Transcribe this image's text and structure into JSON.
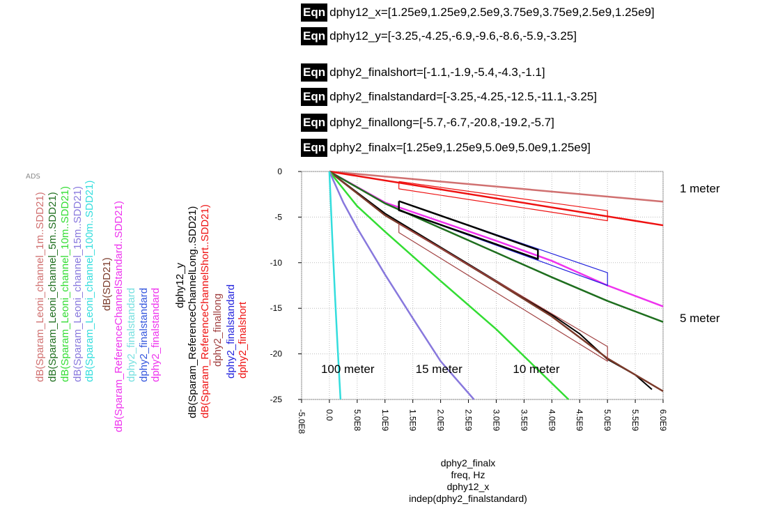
{
  "equations": [
    {
      "tag": "Eqn",
      "text": "dphy12_x=[1.25e9,1.25e9,2.5e9,3.75e9,3.75e9,2.5e9,1.25e9]"
    },
    {
      "tag": "Eqn",
      "text": "dphy12_y=[-3.25,-4.25,-6.9,-9.6,-8.6,-5.9,-3.25]"
    },
    {
      "tag": "Eqn",
      "text": "dphy2_finalshort=[-1.1,-1.9,-5.4,-4.3,-1.1]"
    },
    {
      "tag": "Eqn",
      "text": "dphy2_finalstandard=[-3.25,-4.25,-12.5,-11.1,-3.25]"
    },
    {
      "tag": "Eqn",
      "text": "dphy2_finallong=[-5.7,-6.7,-20.8,-19.2,-5.7]"
    },
    {
      "tag": "Eqn",
      "text": "dphy2_finalx=[1.25e9,1.25e9,5.0e9,5.0e9,1.25e9]"
    }
  ],
  "ads_label": "ADS",
  "xlabels": [
    "dphy2_finalx",
    "freq, Hz",
    "dphy12_x",
    "indep(dphy2_finalstandard)"
  ],
  "colors": {
    "leoni_1m": "#d07070",
    "leoni_5m": "#1e6e1e",
    "leoni_10m": "#33dd33",
    "leoni_15m": "#8878dd",
    "leoni_100m": "#33dddd",
    "sdd21": "#7a3a2a",
    "standard_channel": "#ee33ee",
    "finalstandard_cyan": "#77e0e0",
    "finalstandard_blue": "#3355dd",
    "finalstandard_magenta": "#ee33ee",
    "dphy12": "#000000",
    "long_channel": "#000000",
    "short_channel": "#ee1111",
    "finallong": "#a04040",
    "finalstandard_dark": "#2222dd",
    "finalshort": "#ee1111"
  },
  "chart_data": {
    "type": "line",
    "xlim": [
      -500000000.0,
      6000000000.0
    ],
    "ylim": [
      -25,
      0
    ],
    "xticks": [
      "-5.0E8",
      "0.0",
      "5.0E8",
      "1.0E9",
      "1.5E9",
      "2.0E9",
      "2.5E9",
      "3.0E9",
      "3.5E9",
      "4.0E9",
      "4.5E9",
      "5.0E9",
      "5.5E9",
      "6.0E9"
    ],
    "yticks": [
      "0",
      "-5",
      "-10",
      "-15",
      "-20",
      "-25"
    ],
    "legend": [
      {
        "label": "dB(Sparam_Leoni_channel_1m..SDD21)",
        "color_key": "leoni_1m"
      },
      {
        "label": "dB(Sparam_Leoni_channel_5m..SDD21)",
        "color_key": "leoni_5m"
      },
      {
        "label": "dB(Sparam_Leoni_channel_10m..SDD21)",
        "color_key": "leoni_10m"
      },
      {
        "label": "dB(Sparam_Leoni_channel_15m..SDD21)",
        "color_key": "leoni_15m"
      },
      {
        "label": "dB(Sparam_Leoni_channel_100m..SDD21)",
        "color_key": "leoni_100m"
      },
      {
        "label": "dB(SDD21)",
        "color_key": "sdd21"
      },
      {
        "label": "dB(Sparam_ReferenceChannelStandard..SDD21)",
        "color_key": "standard_channel"
      },
      {
        "label": "dphy2_finalstandard",
        "color_key": "finalstandard_cyan"
      },
      {
        "label": "dphy2_finalstandard",
        "color_key": "finalstandard_blue"
      },
      {
        "label": "dphy2_finalstandard",
        "color_key": "finalstandard_magenta"
      },
      {
        "label": "dphy12_y",
        "color_key": "dphy12"
      },
      {
        "label": "dB(Sparam_ReferenceChannelLong..SDD21)",
        "color_key": "long_channel"
      },
      {
        "label": "dB(Sparam_ReferenceChannelShort..SDD21)",
        "color_key": "short_channel"
      },
      {
        "label": "dphy2_finallong",
        "color_key": "finallong"
      },
      {
        "label": "dphy2_finalstandard",
        "color_key": "finalstandard_dark"
      },
      {
        "label": "dphy2_finalshort",
        "color_key": "finalshort"
      }
    ],
    "annotations": [
      {
        "text": "1 meter",
        "x": 6300000000.0,
        "y": -2.3
      },
      {
        "text": "5 meter",
        "x": 6300000000.0,
        "y": -16.5
      },
      {
        "text": "100 meter",
        "x": -150000000.0,
        "y": -22.1
      },
      {
        "text": "15 meter",
        "x": 1550000000.0,
        "y": -22.1
      },
      {
        "text": "10 meter",
        "x": 3300000000.0,
        "y": -22.1
      }
    ],
    "series": [
      {
        "name": "dB(Sparam_Leoni_channel_1m..SDD21)",
        "color_key": "leoni_1m",
        "width": 2.5,
        "x": [
          0,
          6000000000.0
        ],
        "y": [
          0,
          -3.3
        ]
      },
      {
        "name": "dB(Sparam_ReferenceChannelShort..SDD21)",
        "color_key": "short_channel",
        "width": 2.5,
        "x": [
          0,
          6000000000.0
        ],
        "y": [
          0,
          -5.9
        ]
      },
      {
        "name": "dB(Sparam_ReferenceChannelStandard..SDD21)",
        "color_key": "standard_channel",
        "width": 2.5,
        "x": [
          0,
          1000000000.0,
          2000000000.0,
          3000000000.0,
          4000000000.0,
          5000000000.0,
          6000000000.0
        ],
        "y": [
          0,
          -3.4,
          -5.5,
          -7.6,
          -9.8,
          -12.5,
          -14.8
        ]
      },
      {
        "name": "dB(Sparam_Leoni_channel_5m..SDD21)",
        "color_key": "leoni_5m",
        "width": 2.5,
        "x": [
          0,
          1000000000.0,
          2000000000.0,
          3000000000.0,
          4000000000.0,
          5000000000.0,
          6000000000.0
        ],
        "y": [
          0,
          -3.5,
          -6.2,
          -8.9,
          -11.6,
          -14.2,
          -16.5
        ]
      },
      {
        "name": "dB(Sparam_ReferenceChannelLong..SDD21)",
        "color_key": "long_channel",
        "width": 2,
        "x": [
          0,
          1000000000.0,
          2000000000.0,
          3000000000.0,
          4000000000.0,
          4500000000.0,
          5000000000.0,
          5500000000.0,
          5800000000.0
        ],
        "y": [
          0,
          -4.6,
          -8.3,
          -12.0,
          -15.7,
          -17.8,
          -20.6,
          -22.3,
          -23.9
        ]
      },
      {
        "name": "dB(SDD21)",
        "color_key": "sdd21",
        "width": 2.5,
        "x": [
          0,
          1000000000.0,
          2000000000.0,
          3000000000.0,
          4000000000.0,
          5000000000.0,
          6000000000.0
        ],
        "y": [
          0,
          -4.8,
          -8.4,
          -12.1,
          -15.9,
          -20.5,
          -24.1
        ]
      },
      {
        "name": "dB(Sparam_Leoni_channel_10m..SDD21)",
        "color_key": "leoni_10m",
        "width": 2.5,
        "x": [
          0,
          500000000.0,
          1000000000.0,
          2000000000.0,
          3000000000.0,
          4300000000.0
        ],
        "y": [
          0,
          -3.8,
          -6.6,
          -12.0,
          -17.3,
          -25.0
        ]
      },
      {
        "name": "dB(Sparam_Leoni_channel_15m..SDD21)",
        "color_key": "leoni_15m",
        "width": 2.5,
        "x": [
          0,
          250000000.0,
          500000000.0,
          1000000000.0,
          1500000000.0,
          2000000000.0,
          2600000000.0
        ],
        "y": [
          0,
          -3.4,
          -6.2,
          -11.3,
          -16.1,
          -20.8,
          -25.0
        ]
      },
      {
        "name": "dB(Sparam_Leoni_channel_100m..SDD21)",
        "color_key": "leoni_100m",
        "width": 2.5,
        "x": [
          0,
          50000000.0,
          100000000.0,
          150000000.0,
          200000000.0
        ],
        "y": [
          0,
          -7.0,
          -13.5,
          -19.5,
          -25.0
        ]
      },
      {
        "name": "dphy2_finalshort",
        "color_key": "finalshort",
        "width": 1.2,
        "x": [
          1250000000.0,
          1250000000.0,
          5000000000.0,
          5000000000.0,
          1250000000.0
        ],
        "y": [
          -1.1,
          -1.9,
          -5.4,
          -4.3,
          -1.1
        ]
      },
      {
        "name": "dphy2_finalstandard",
        "color_key": "finalstandard_dark",
        "width": 1.2,
        "x": [
          1250000000.0,
          1250000000.0,
          5000000000.0,
          5000000000.0,
          1250000000.0
        ],
        "y": [
          -3.25,
          -4.25,
          -12.5,
          -11.1,
          -3.25
        ]
      },
      {
        "name": "dphy2_finallong",
        "color_key": "finallong",
        "width": 1.2,
        "x": [
          1250000000.0,
          1250000000.0,
          5000000000.0,
          5000000000.0,
          1250000000.0
        ],
        "y": [
          -5.7,
          -6.7,
          -20.8,
          -19.2,
          -5.7
        ]
      },
      {
        "name": "dphy12_y",
        "color_key": "dphy12",
        "width": 2.5,
        "x": [
          1250000000.0,
          1250000000.0,
          2500000000.0,
          3750000000.0,
          3750000000.0,
          2500000000.0,
          1250000000.0
        ],
        "y": [
          -3.25,
          -4.25,
          -6.9,
          -9.6,
          -8.6,
          -5.9,
          -3.25
        ]
      }
    ]
  }
}
